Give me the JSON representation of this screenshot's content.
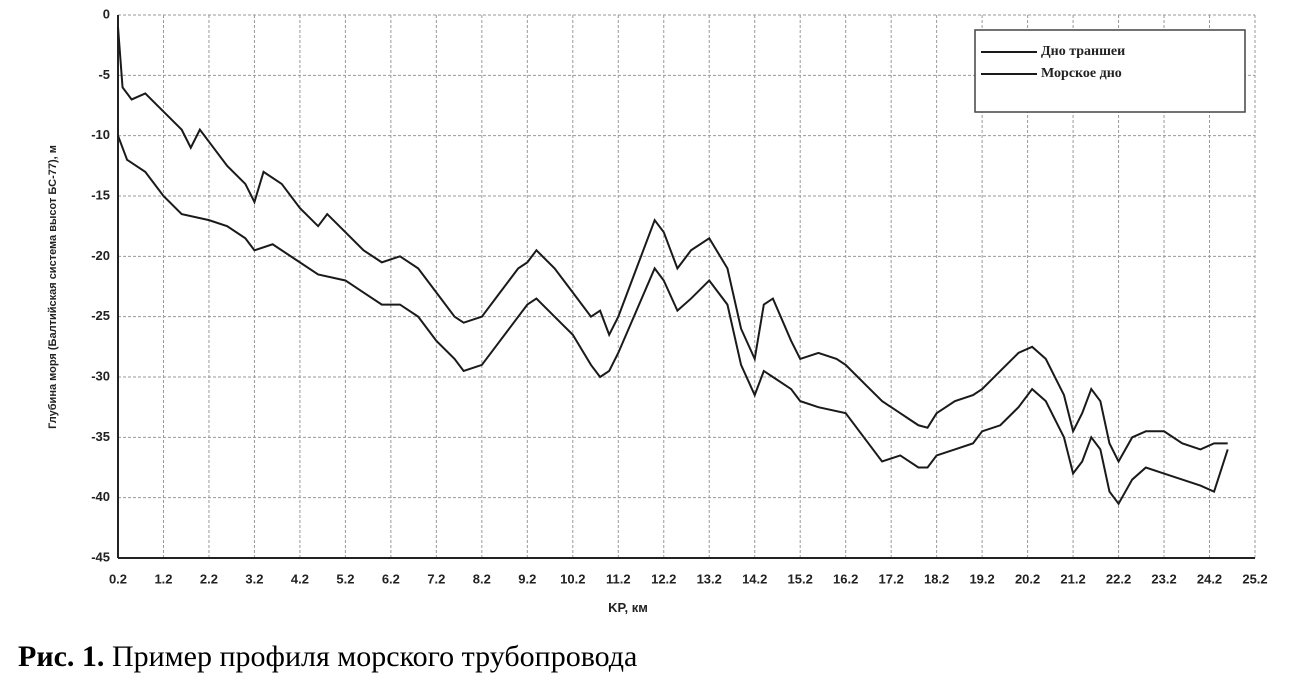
{
  "chart_data": {
    "type": "line",
    "ylabel": "Глубина моря (Балтийская система высот БС-77), м",
    "xlabel": "KP, км",
    "xlim": [
      0.2,
      25.2
    ],
    "xticks": [
      0.2,
      1.2,
      2.2,
      3.2,
      4.2,
      5.2,
      6.2,
      7.2,
      8.2,
      9.2,
      10.2,
      11.2,
      12.2,
      13.2,
      14.2,
      15.2,
      16.2,
      17.2,
      18.2,
      19.2,
      20.2,
      21.2,
      22.2,
      23.2,
      24.2,
      25.2
    ],
    "ylim": [
      -45,
      0
    ],
    "yticks": [
      0,
      -5,
      -10,
      -15,
      -20,
      -25,
      -30,
      -35,
      -40,
      -45
    ],
    "grid": true,
    "legend": "top-right",
    "series": [
      {
        "name": "Дно траншеи",
        "color": "#1a1a1a",
        "x": [
          0.2,
          0.4,
          0.8,
          1.2,
          1.6,
          2.2,
          2.6,
          3.0,
          3.2,
          3.6,
          4.2,
          4.6,
          5.2,
          5.6,
          6.0,
          6.4,
          6.8,
          7.2,
          7.6,
          7.8,
          8.2,
          8.6,
          9.0,
          9.2,
          9.4,
          9.8,
          10.2,
          10.6,
          10.8,
          11.0,
          11.2,
          11.6,
          12.0,
          12.2,
          12.5,
          12.8,
          13.2,
          13.6,
          13.9,
          14.2,
          14.4,
          14.6,
          15.0,
          15.2,
          15.6,
          16.2,
          16.6,
          17.0,
          17.4,
          17.8,
          18.0,
          18.2,
          18.6,
          19.0,
          19.2,
          19.6,
          20.0,
          20.3,
          20.6,
          21.0,
          21.2,
          21.4,
          21.6,
          21.8,
          22.0,
          22.2,
          22.5,
          22.8,
          23.2,
          23.6,
          24.0,
          24.3,
          24.6
        ],
        "values": [
          -10,
          -12,
          -13,
          -15,
          -16.5,
          -17,
          -17.5,
          -18.5,
          -19.5,
          -19,
          -20.5,
          -21.5,
          -22,
          -23,
          -24,
          -24,
          -25,
          -27,
          -28.5,
          -29.5,
          -29,
          -27,
          -25,
          -24,
          -23.5,
          -25,
          -26.5,
          -29,
          -30,
          -29.5,
          -28,
          -24.5,
          -21,
          -22,
          -24.5,
          -23.5,
          -22,
          -24,
          -29,
          -31.5,
          -29.5,
          -30,
          -31,
          -32,
          -32.5,
          -33,
          -35,
          -37,
          -36.5,
          -37.5,
          -37.5,
          -36.5,
          -36,
          -35.5,
          -34.5,
          -34,
          -32.5,
          -31,
          -32,
          -35,
          -38,
          -37,
          -35,
          -36,
          -39.5,
          -40.5,
          -38.5,
          -37.5,
          -38,
          -38.5,
          -39,
          -39.5,
          -36
        ]
      },
      {
        "name": "Морское дно",
        "color": "#1a1a1a",
        "x": [
          0.2,
          0.3,
          0.5,
          0.8,
          1.2,
          1.6,
          1.8,
          2.0,
          2.2,
          2.6,
          3.0,
          3.2,
          3.4,
          3.8,
          4.2,
          4.6,
          4.8,
          5.2,
          5.6,
          6.0,
          6.4,
          6.8,
          7.2,
          7.6,
          7.8,
          8.2,
          8.6,
          9.0,
          9.2,
          9.4,
          9.8,
          10.2,
          10.6,
          10.8,
          11.0,
          11.2,
          11.6,
          12.0,
          12.2,
          12.5,
          12.8,
          13.2,
          13.6,
          13.9,
          14.2,
          14.4,
          14.6,
          15.0,
          15.2,
          15.6,
          16.0,
          16.2,
          16.6,
          17.0,
          17.4,
          17.6,
          17.8,
          18.0,
          18.2,
          18.6,
          19.0,
          19.2,
          19.6,
          20.0,
          20.3,
          20.6,
          21.0,
          21.2,
          21.4,
          21.6,
          21.8,
          22.0,
          22.2,
          22.5,
          22.8,
          23.2,
          23.6,
          24.0,
          24.3,
          24.6
        ],
        "values": [
          -1,
          -6,
          -7,
          -6.5,
          -8,
          -9.5,
          -11,
          -9.5,
          -10.5,
          -12.5,
          -14,
          -15.5,
          -13,
          -14,
          -16,
          -17.5,
          -16.5,
          -18,
          -19.5,
          -20.5,
          -20,
          -21,
          -23,
          -25,
          -25.5,
          -25,
          -23,
          -21,
          -20.5,
          -19.5,
          -21,
          -23,
          -25,
          -24.5,
          -26.5,
          -25,
          -21,
          -17,
          -18,
          -21,
          -19.5,
          -18.5,
          -21,
          -26,
          -28.5,
          -24,
          -23.5,
          -27,
          -28.5,
          -28,
          -28.5,
          -29,
          -30.5,
          -32,
          -33,
          -33.5,
          -34,
          -34.2,
          -33,
          -32,
          -31.5,
          -31,
          -29.5,
          -28,
          -27.5,
          -28.5,
          -31.5,
          -34.5,
          -33,
          -31,
          -32,
          -35.5,
          -37,
          -35,
          -34.5,
          -34.5,
          -35.5,
          -36,
          -35.5,
          -35.5
        ]
      }
    ]
  },
  "caption": {
    "label": "Рис. 1.",
    "text": "Пример профиля морского трубопровода"
  }
}
